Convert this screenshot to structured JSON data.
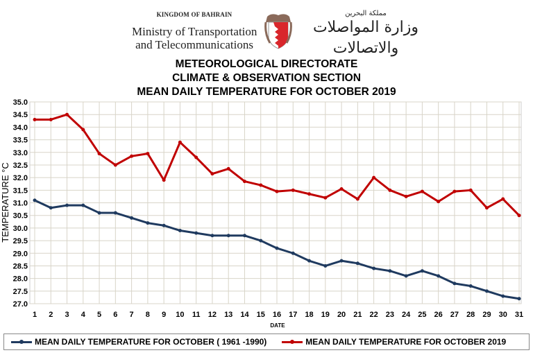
{
  "header": {
    "kingdom": "KINGDOM OF BAHRAIN",
    "ministry_line1": "Ministry of Transportation",
    "ministry_line2": "and Telecommunications",
    "arabic_kingdom": "مملكة البحرين",
    "arabic_ministry": "وزارة المواصلات والاتصالات"
  },
  "titles": [
    "METEOROLOGICAL DIRECTORATE",
    "CLIMATE & OBSERVATION SECTION",
    "MEAN DAILY TEMPERATURE FOR OCTOBER 2019"
  ],
  "chart_data": {
    "type": "line",
    "title": "MEAN DAILY TEMPERATURE FOR OCTOBER 2019",
    "xlabel": "DATE",
    "ylabel": "TEMPERATURE °C",
    "ylim": [
      27.0,
      35.0
    ],
    "ytick_step": 0.5,
    "grid": true,
    "legend_position": "bottom",
    "x": [
      1,
      2,
      3,
      4,
      5,
      6,
      7,
      8,
      9,
      10,
      11,
      12,
      13,
      14,
      15,
      16,
      17,
      18,
      19,
      20,
      21,
      22,
      23,
      24,
      25,
      26,
      27,
      28,
      29,
      30,
      31
    ],
    "series": [
      {
        "name": "MEAN DAILY TEMPERATURE FOR OCTOBER ( 1961 -1990)",
        "color": "#1f3a5f",
        "values": [
          31.1,
          30.8,
          30.9,
          30.9,
          30.6,
          30.6,
          30.4,
          30.2,
          30.1,
          29.9,
          29.8,
          29.7,
          29.7,
          29.7,
          29.5,
          29.2,
          29.0,
          28.7,
          28.5,
          28.7,
          28.6,
          28.4,
          28.3,
          28.1,
          28.3,
          28.1,
          27.8,
          27.7,
          27.5,
          27.3,
          27.2
        ]
      },
      {
        "name": "MEAN DAILY TEMPERATURE FOR OCTOBER 2019",
        "color": "#c00000",
        "values": [
          34.3,
          34.3,
          34.5,
          33.9,
          32.95,
          32.5,
          32.85,
          32.95,
          31.9,
          33.4,
          32.8,
          32.15,
          32.35,
          31.85,
          31.7,
          31.45,
          31.5,
          31.35,
          31.2,
          31.55,
          31.15,
          32.0,
          31.5,
          31.25,
          31.45,
          31.05,
          31.45,
          31.5,
          30.8,
          31.15,
          30.5
        ]
      }
    ]
  }
}
